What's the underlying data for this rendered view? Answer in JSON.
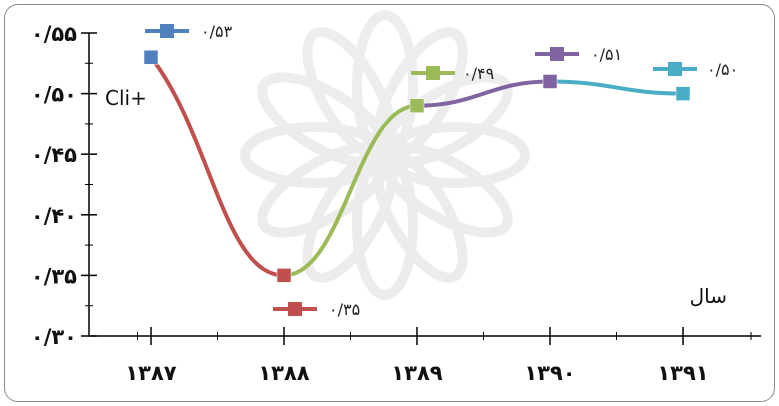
{
  "chart_data": {
    "type": "line",
    "title": "",
    "xlabel": "سال",
    "ylabel": "Cli+",
    "categories": [
      "۱۳۸۷",
      "۱۳۸۸",
      "۱۳۸۹",
      "۱۳۹۰",
      "۱۳۹۱"
    ],
    "values": [
      0.53,
      0.35,
      0.49,
      0.51,
      0.5
    ],
    "data_labels": [
      "۰/۵۳",
      "۰/۳۵",
      "۰/۴۹",
      "۰/۵۱",
      "۰/۵۰"
    ],
    "ylim": [
      0.3,
      0.55
    ],
    "yticks": [
      0.3,
      0.35,
      0.4,
      0.45,
      0.5,
      0.55
    ],
    "ytick_labels": [
      "۰/۳۰",
      "۰/۳۵",
      "۰/۴۰",
      "۰/۴۵",
      "۰/۵۰",
      "۰/۵۵"
    ],
    "segment_colors": [
      "#c0504d",
      "#9bbb59",
      "#8064a2",
      "#4bacc6"
    ],
    "marker_colors": [
      "#4f81bd",
      "#c0504d",
      "#9bbb59",
      "#8064a2",
      "#4bacc6"
    ],
    "grid": false,
    "legend": "inline-data-labels"
  }
}
